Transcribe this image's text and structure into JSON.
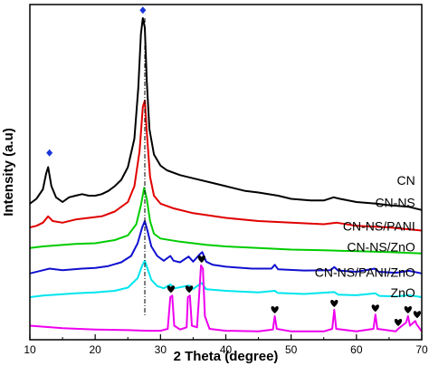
{
  "chart_data": {
    "type": "line",
    "xlabel": "2 Theta (degree)",
    "ylabel": "Intensity (a.u)",
    "xlim": [
      10,
      70
    ],
    "x_ticks": [
      10,
      20,
      30,
      40,
      50,
      60,
      70
    ],
    "grid": false,
    "legend_placement": "labels at right end of each curve",
    "reference_line_x": 27.6,
    "series": [
      {
        "name": "CN",
        "color": "#000000",
        "points": [
          [
            10,
            0.415
          ],
          [
            11,
            0.43
          ],
          [
            12,
            0.46
          ],
          [
            12.5,
            0.51
          ],
          [
            12.8,
            0.53
          ],
          [
            13.3,
            0.47
          ],
          [
            14,
            0.435
          ],
          [
            15,
            0.42
          ],
          [
            16,
            0.435
          ],
          [
            17,
            0.44
          ],
          [
            18,
            0.445
          ],
          [
            19,
            0.44
          ],
          [
            20,
            0.44
          ],
          [
            21,
            0.445
          ],
          [
            22,
            0.455
          ],
          [
            23,
            0.47
          ],
          [
            24,
            0.49
          ],
          [
            25,
            0.53
          ],
          [
            26,
            0.62
          ],
          [
            26.6,
            0.78
          ],
          [
            27,
            0.95
          ],
          [
            27.3,
            1.0
          ],
          [
            27.6,
            0.97
          ],
          [
            27.9,
            0.8
          ],
          [
            28.3,
            0.65
          ],
          [
            29,
            0.57
          ],
          [
            30,
            0.535
          ],
          [
            31,
            0.52
          ],
          [
            33,
            0.505
          ],
          [
            35,
            0.495
          ],
          [
            38,
            0.48
          ],
          [
            40,
            0.47
          ],
          [
            43,
            0.455
          ],
          [
            45,
            0.45
          ],
          [
            48,
            0.44
          ],
          [
            50,
            0.43
          ],
          [
            53,
            0.425
          ],
          [
            55,
            0.425
          ],
          [
            56.5,
            0.435
          ],
          [
            57.5,
            0.43
          ],
          [
            60,
            0.42
          ],
          [
            63,
            0.415
          ],
          [
            65,
            0.41
          ],
          [
            68,
            0.405
          ],
          [
            70,
            0.395
          ]
        ]
      },
      {
        "name": "CN-NS",
        "color": "#e00000",
        "points": [
          [
            10,
            0.34
          ],
          [
            11,
            0.345
          ],
          [
            12,
            0.355
          ],
          [
            12.8,
            0.375
          ],
          [
            13.5,
            0.36
          ],
          [
            15,
            0.355
          ],
          [
            17,
            0.365
          ],
          [
            19,
            0.37
          ],
          [
            21,
            0.375
          ],
          [
            23,
            0.39
          ],
          [
            25,
            0.42
          ],
          [
            26,
            0.47
          ],
          [
            26.8,
            0.58
          ],
          [
            27.3,
            0.72
          ],
          [
            27.6,
            0.74
          ],
          [
            27.9,
            0.64
          ],
          [
            28.4,
            0.5
          ],
          [
            29,
            0.44
          ],
          [
            30,
            0.415
          ],
          [
            32,
            0.4
          ],
          [
            35,
            0.385
          ],
          [
            40,
            0.37
          ],
          [
            45,
            0.36
          ],
          [
            50,
            0.355
          ],
          [
            55,
            0.35
          ],
          [
            57,
            0.355
          ],
          [
            60,
            0.345
          ],
          [
            65,
            0.34
          ],
          [
            70,
            0.33
          ]
        ]
      },
      {
        "name": "CN-NS/PANI",
        "color": "#00cc00",
        "points": [
          [
            10,
            0.275
          ],
          [
            12,
            0.28
          ],
          [
            14,
            0.283
          ],
          [
            17,
            0.288
          ],
          [
            20,
            0.29
          ],
          [
            23,
            0.3
          ],
          [
            25,
            0.315
          ],
          [
            26.3,
            0.35
          ],
          [
            27,
            0.41
          ],
          [
            27.5,
            0.465
          ],
          [
            27.9,
            0.43
          ],
          [
            28.4,
            0.36
          ],
          [
            29,
            0.32
          ],
          [
            30,
            0.305
          ],
          [
            33,
            0.295
          ],
          [
            37,
            0.285
          ],
          [
            40,
            0.28
          ],
          [
            45,
            0.275
          ],
          [
            50,
            0.27
          ],
          [
            55,
            0.268
          ],
          [
            60,
            0.265
          ],
          [
            65,
            0.262
          ],
          [
            70,
            0.258
          ]
        ]
      },
      {
        "name": "CN-NS/ZnO",
        "color": "#1010d0",
        "points": [
          [
            10,
            0.195
          ],
          [
            12,
            0.205
          ],
          [
            13,
            0.21
          ],
          [
            15,
            0.205
          ],
          [
            18,
            0.21
          ],
          [
            20,
            0.212
          ],
          [
            22,
            0.218
          ],
          [
            24,
            0.23
          ],
          [
            25.5,
            0.25
          ],
          [
            26.5,
            0.29
          ],
          [
            27.2,
            0.34
          ],
          [
            27.6,
            0.36
          ],
          [
            28,
            0.33
          ],
          [
            28.6,
            0.28
          ],
          [
            29.5,
            0.25
          ],
          [
            30.5,
            0.235
          ],
          [
            31.5,
            0.25
          ],
          [
            32,
            0.235
          ],
          [
            33,
            0.23
          ],
          [
            34.3,
            0.248
          ],
          [
            35,
            0.232
          ],
          [
            36,
            0.255
          ],
          [
            36.4,
            0.262
          ],
          [
            37,
            0.232
          ],
          [
            38,
            0.222
          ],
          [
            40,
            0.216
          ],
          [
            44,
            0.21
          ],
          [
            47,
            0.21
          ],
          [
            47.5,
            0.222
          ],
          [
            48,
            0.208
          ],
          [
            52,
            0.204
          ],
          [
            56,
            0.205
          ],
          [
            56.6,
            0.215
          ],
          [
            57.2,
            0.204
          ],
          [
            60,
            0.2
          ],
          [
            62.8,
            0.21
          ],
          [
            63.4,
            0.2
          ],
          [
            66,
            0.197
          ],
          [
            68,
            0.203
          ],
          [
            70,
            0.195
          ]
        ]
      },
      {
        "name": "CN-NS/PANI/ZnO",
        "color": "#00e5ee",
        "points": [
          [
            10,
            0.12
          ],
          [
            12,
            0.125
          ],
          [
            14,
            0.128
          ],
          [
            17,
            0.132
          ],
          [
            20,
            0.135
          ],
          [
            23,
            0.14
          ],
          [
            25,
            0.15
          ],
          [
            26.5,
            0.18
          ],
          [
            27.2,
            0.22
          ],
          [
            27.6,
            0.235
          ],
          [
            28,
            0.21
          ],
          [
            28.6,
            0.175
          ],
          [
            29.5,
            0.155
          ],
          [
            30.5,
            0.148
          ],
          [
            31.5,
            0.16
          ],
          [
            32.2,
            0.148
          ],
          [
            34.4,
            0.157
          ],
          [
            35,
            0.146
          ],
          [
            36.3,
            0.165
          ],
          [
            37,
            0.145
          ],
          [
            40,
            0.14
          ],
          [
            45,
            0.135
          ],
          [
            47.5,
            0.14
          ],
          [
            48,
            0.133
          ],
          [
            52,
            0.13
          ],
          [
            56.6,
            0.136
          ],
          [
            57.2,
            0.128
          ],
          [
            60,
            0.126
          ],
          [
            62.9,
            0.132
          ],
          [
            63.5,
            0.124
          ],
          [
            66,
            0.122
          ],
          [
            68,
            0.126
          ],
          [
            70,
            0.12
          ]
        ]
      },
      {
        "name": "ZnO",
        "color": "#ee00ee",
        "points": [
          [
            10,
            0.03
          ],
          [
            15,
            0.022
          ],
          [
            20,
            0.018
          ],
          [
            25,
            0.016
          ],
          [
            28,
            0.014
          ],
          [
            30,
            0.014
          ],
          [
            31.1,
            0.02
          ],
          [
            31.5,
            0.12
          ],
          [
            31.8,
            0.125
          ],
          [
            32.1,
            0.03
          ],
          [
            33,
            0.018
          ],
          [
            34,
            0.025
          ],
          [
            34.2,
            0.12
          ],
          [
            34.5,
            0.125
          ],
          [
            34.8,
            0.03
          ],
          [
            35.6,
            0.025
          ],
          [
            35.9,
            0.12
          ],
          [
            36.2,
            0.22
          ],
          [
            36.5,
            0.21
          ],
          [
            36.8,
            0.06
          ],
          [
            37.5,
            0.02
          ],
          [
            40,
            0.014
          ],
          [
            45,
            0.012
          ],
          [
            47.2,
            0.018
          ],
          [
            47.5,
            0.06
          ],
          [
            47.8,
            0.02
          ],
          [
            50,
            0.012
          ],
          [
            55,
            0.012
          ],
          [
            56.3,
            0.02
          ],
          [
            56.6,
            0.08
          ],
          [
            56.9,
            0.02
          ],
          [
            60,
            0.012
          ],
          [
            62.6,
            0.02
          ],
          [
            62.9,
            0.065
          ],
          [
            63.2,
            0.02
          ],
          [
            66,
            0.012
          ],
          [
            66.4,
            0.02
          ],
          [
            67,
            0.03
          ],
          [
            67.6,
            0.04
          ],
          [
            67.9,
            0.06
          ],
          [
            68.2,
            0.03
          ],
          [
            69,
            0.045
          ],
          [
            69.2,
            0.035
          ],
          [
            70,
            0.012
          ]
        ]
      }
    ],
    "curve_labels": [
      {
        "text": "CN",
        "x": 69,
        "y": 0.475
      },
      {
        "text": "CN-NS",
        "x": 69,
        "y": 0.405
      },
      {
        "text": "CN-NS/PANI",
        "x": 69,
        "y": 0.33
      },
      {
        "text": "CN-NS/ZnO",
        "x": 69,
        "y": 0.265
      },
      {
        "text": "CN-NS/PANI/ZnO",
        "x": 69,
        "y": 0.185
      },
      {
        "text": "ZnO",
        "x": 69,
        "y": 0.12
      }
    ],
    "diamond_markers": [
      {
        "x": 13.0,
        "y": 0.575,
        "color": "#1a36d9"
      },
      {
        "x": 27.3,
        "y": 1.025,
        "color": "#1a36d9"
      }
    ],
    "heart_markers": [
      {
        "x": 31.6,
        "y": 0.145
      },
      {
        "x": 34.4,
        "y": 0.145
      },
      {
        "x": 36.3,
        "y": 0.24
      },
      {
        "x": 47.5,
        "y": 0.08
      },
      {
        "x": 56.6,
        "y": 0.1
      },
      {
        "x": 62.9,
        "y": 0.085
      },
      {
        "x": 66.4,
        "y": 0.04
      },
      {
        "x": 67.9,
        "y": 0.08
      },
      {
        "x": 69.3,
        "y": 0.065
      }
    ]
  }
}
